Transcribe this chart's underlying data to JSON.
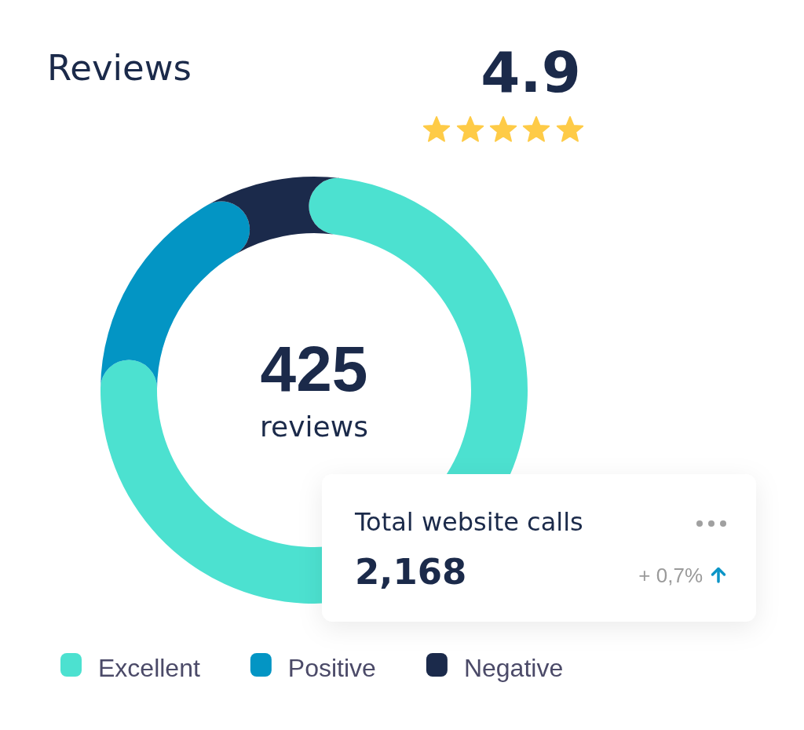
{
  "chart_data": {
    "type": "donut",
    "title": "Reviews",
    "categories": [
      "Excellent",
      "Positive",
      "Negative"
    ],
    "values": [
      77,
      16.5,
      6.5
    ],
    "colors": [
      "#4ce1d0",
      "#0395c4",
      "#1b2a4b"
    ],
    "legend": "bottom",
    "annotations": [
      "4.9",
      "425",
      "reviews",
      "Total website calls",
      "2,168",
      "+ 0,7%"
    ]
  }
}
